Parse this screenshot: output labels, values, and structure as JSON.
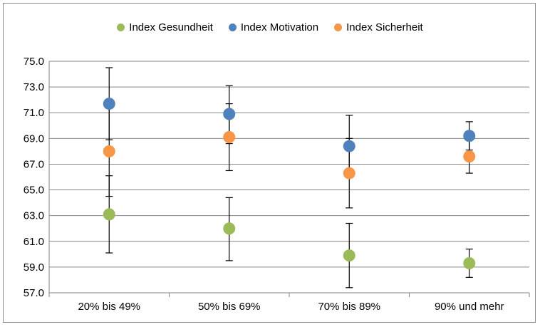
{
  "chart_data": {
    "type": "scatter",
    "title": "",
    "xlabel": "",
    "ylabel": "",
    "categories": [
      "20% bis 49%",
      "50% bis 69%",
      "70% bis 89%",
      "90% und mehr"
    ],
    "ylim": [
      57.0,
      75.0
    ],
    "yticks": [
      "57.0",
      "59.0",
      "61.0",
      "63.0",
      "65.0",
      "67.0",
      "69.0",
      "71.0",
      "73.0",
      "75.0"
    ],
    "grid": true,
    "legend_position": "top",
    "series": [
      {
        "name": "Index Gesundheit",
        "color": "#9bbb59",
        "values": [
          63.1,
          62.0,
          59.9,
          59.3
        ],
        "err_low": [
          60.1,
          59.5,
          57.4,
          58.2
        ],
        "err_high": [
          66.1,
          64.4,
          62.4,
          60.4
        ]
      },
      {
        "name": "Index Motivation",
        "color": "#4f81bd",
        "values": [
          71.7,
          70.9,
          68.4,
          69.2
        ],
        "err_low": [
          68.9,
          68.6,
          66.0,
          68.1
        ],
        "err_high": [
          74.5,
          73.1,
          70.8,
          70.3
        ]
      },
      {
        "name": "Index Sicherheit",
        "color": "#f79646",
        "values": [
          68.0,
          69.1,
          66.3,
          67.6
        ],
        "err_low": [
          64.5,
          66.5,
          63.6,
          66.3
        ],
        "err_high": [
          71.7,
          71.7,
          69.0,
          68.9
        ]
      }
    ]
  }
}
